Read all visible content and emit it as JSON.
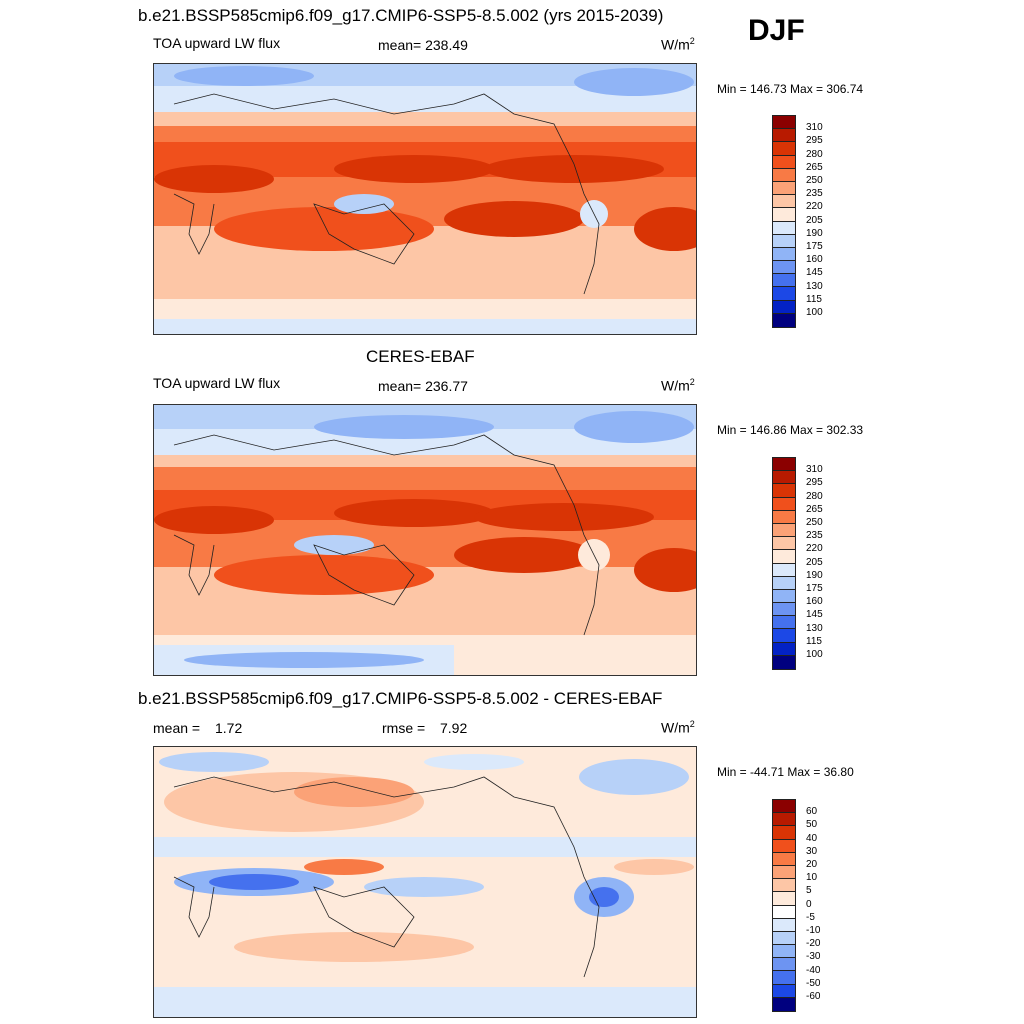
{
  "figure": {
    "main_title": "b.e21.BSSP585cmip6.f09_g17.CMIP6-SSP5-8.5.002 (yrs 2015-2039)",
    "season": "DJF"
  },
  "panels": [
    {
      "variable": "TOA upward LW flux",
      "stat_text": "mean= 238.49",
      "units": "W/m",
      "units_sup": "2",
      "minmax": "Min = 146.73 Max = 306.74",
      "colorbar_ticks": [
        "310",
        "295",
        "280",
        "265",
        "250",
        "235",
        "220",
        "205",
        "190",
        "175",
        "160",
        "145",
        "130",
        "115",
        "100"
      ],
      "colors": [
        "#8b0000",
        "#b81a00",
        "#d93405",
        "#f0501c",
        "#f87a45",
        "#fba277",
        "#fdc6a6",
        "#feeadb",
        "#dbe9fb",
        "#b7d1f8",
        "#90b4f6",
        "#6d94f2",
        "#4571ee",
        "#1c48e6",
        "#0322c5",
        "#00007f"
      ]
    },
    {
      "subtitle": "CERES-EBAF",
      "variable": "TOA upward LW flux",
      "stat_text": "mean= 236.77",
      "units": "W/m",
      "units_sup": "2",
      "minmax": "Min = 146.86 Max = 302.33",
      "colorbar_ticks": [
        "310",
        "295",
        "280",
        "265",
        "250",
        "235",
        "220",
        "205",
        "190",
        "175",
        "160",
        "145",
        "130",
        "115",
        "100"
      ],
      "colors": [
        "#8b0000",
        "#b81a00",
        "#d93405",
        "#f0501c",
        "#f87a45",
        "#fba277",
        "#fdc6a6",
        "#feeadb",
        "#dbe9fb",
        "#b7d1f8",
        "#90b4f6",
        "#6d94f2",
        "#4571ee",
        "#1c48e6",
        "#0322c5",
        "#00007f"
      ]
    },
    {
      "subtitle": "b.e21.BSSP585cmip6.f09_g17.CMIP6-SSP5-8.5.002 - CERES-EBAF",
      "mean_label": "mean =",
      "mean_value": "1.72",
      "rmse_label": "rmse =",
      "rmse_value": "7.92",
      "units": "W/m",
      "units_sup": "2",
      "minmax": "Min = -44.71 Max =  36.80",
      "colorbar_ticks": [
        "60",
        "50",
        "40",
        "30",
        "20",
        "10",
        "5",
        "0",
        "-5",
        "-10",
        "-20",
        "-30",
        "-40",
        "-50",
        "-60"
      ],
      "colors": [
        "#8b0000",
        "#b81a00",
        "#d93405",
        "#f0501c",
        "#f87a45",
        "#fba277",
        "#fdc6a6",
        "#feeadb",
        "#ffffff",
        "#dbe9fb",
        "#b7d1f8",
        "#90b4f6",
        "#6d94f2",
        "#4571ee",
        "#1c48e6",
        "#00007f"
      ]
    }
  ]
}
